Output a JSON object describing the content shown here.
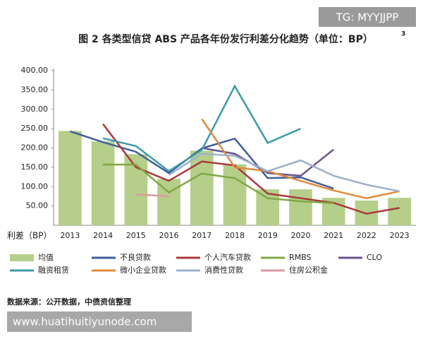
{
  "chart_data": {
    "type": "combo",
    "title": "图 2 各类型信贷 ABS 产品各年份发行利差分化趋势（单位：BP）",
    "title_note": "3",
    "y_label": "利差（BP）",
    "source": "数据来源：公开数据，中债资信整理",
    "categories": [
      "2013",
      "2014",
      "2015",
      "2016",
      "2017",
      "2018",
      "2019",
      "2020",
      "2021",
      "2022",
      "2023"
    ],
    "ylim": [
      0,
      400
    ],
    "yticks": [
      {
        "value": 50,
        "label": "50.00"
      },
      {
        "value": 100,
        "label": "100.00"
      },
      {
        "value": 150,
        "label": "150.00"
      },
      {
        "value": 200,
        "label": "200.00"
      },
      {
        "value": 250,
        "label": "250.00"
      },
      {
        "value": 300,
        "label": "300.00"
      },
      {
        "value": 350,
        "label": "350.00"
      },
      {
        "value": 400,
        "label": "400.00"
      }
    ],
    "grid": false,
    "series": [
      {
        "name": "均值",
        "type": "bar",
        "color": "#b5cf8a",
        "values": [
          244,
          217,
          184,
          120,
          193,
          158,
          93,
          93,
          71,
          64,
          71
        ]
      },
      {
        "name": "不良贷款",
        "type": "line",
        "color": "#3f5f99",
        "values": [
          243,
          215,
          190,
          135,
          199,
          224,
          122,
          124,
          95,
          null,
          null
        ]
      },
      {
        "name": "个人汽车贷款",
        "type": "line",
        "color": "#a83a3a",
        "values": [
          null,
          262,
          150,
          115,
          165,
          155,
          82,
          70,
          58,
          30,
          45
        ]
      },
      {
        "name": "RMBS",
        "type": "line",
        "color": "#7fa844",
        "values": [
          null,
          157,
          157,
          85,
          134,
          122,
          70,
          62,
          57,
          null,
          null
        ]
      },
      {
        "name": "CLO",
        "type": "line",
        "color": "#6a5590",
        "values": [
          null,
          null,
          null,
          null,
          200,
          185,
          135,
          128,
          196,
          null,
          null
        ]
      },
      {
        "name": "融资租赁",
        "type": "line",
        "color": "#3c9aa8",
        "values": [
          null,
          225,
          205,
          140,
          195,
          360,
          213,
          250,
          null,
          null,
          null
        ]
      },
      {
        "name": "微小企业贷款",
        "type": "line",
        "color": "#e08a3c",
        "values": [
          null,
          null,
          null,
          null,
          275,
          150,
          140,
          115,
          90,
          70,
          88
        ]
      },
      {
        "name": "消费性贷款",
        "type": "line",
        "color": "#9fb0cc",
        "values": [
          null,
          null,
          null,
          130,
          185,
          180,
          140,
          168,
          128,
          105,
          88
        ]
      },
      {
        "name": "住房公积金",
        "type": "line",
        "color": "#d99aa0",
        "values": [
          null,
          null,
          80,
          75,
          null,
          null,
          null,
          null,
          null,
          null,
          null
        ]
      }
    ]
  },
  "watermarks": {
    "top": "TG: MYYJJPP",
    "bottom": "www.huatihuitiyunode.com"
  }
}
